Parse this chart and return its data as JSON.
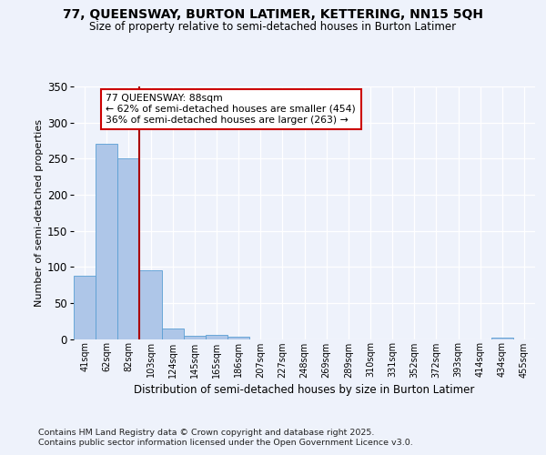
{
  "title_line1": "77, QUEENSWAY, BURTON LATIMER, KETTERING, NN15 5QH",
  "title_line2": "Size of property relative to semi-detached houses in Burton Latimer",
  "xlabel": "Distribution of semi-detached houses by size in Burton Latimer",
  "ylabel": "Number of semi-detached properties",
  "categories": [
    "41sqm",
    "62sqm",
    "82sqm",
    "103sqm",
    "124sqm",
    "145sqm",
    "165sqm",
    "186sqm",
    "207sqm",
    "227sqm",
    "248sqm",
    "269sqm",
    "289sqm",
    "310sqm",
    "331sqm",
    "352sqm",
    "372sqm",
    "393sqm",
    "414sqm",
    "434sqm",
    "455sqm"
  ],
  "values": [
    88,
    270,
    250,
    95,
    15,
    4,
    6,
    3,
    0,
    0,
    0,
    0,
    0,
    0,
    0,
    0,
    0,
    0,
    0,
    2,
    0
  ],
  "bar_color": "#aec6e8",
  "bar_edge_color": "#5a9fd4",
  "property_label": "77 QUEENSWAY: 88sqm",
  "pct_smaller": 62,
  "count_smaller": 454,
  "pct_larger": 36,
  "count_larger": 263,
  "vline_x_index": 2,
  "vline_color": "#aa0000",
  "annotation_box_color": "#cc0000",
  "ylim": [
    0,
    350
  ],
  "yticks": [
    0,
    50,
    100,
    150,
    200,
    250,
    300,
    350
  ],
  "footer_line1": "Contains HM Land Registry data © Crown copyright and database right 2025.",
  "footer_line2": "Contains public sector information licensed under the Open Government Licence v3.0.",
  "bg_color": "#eef2fb",
  "plot_bg_color": "#eef2fb"
}
